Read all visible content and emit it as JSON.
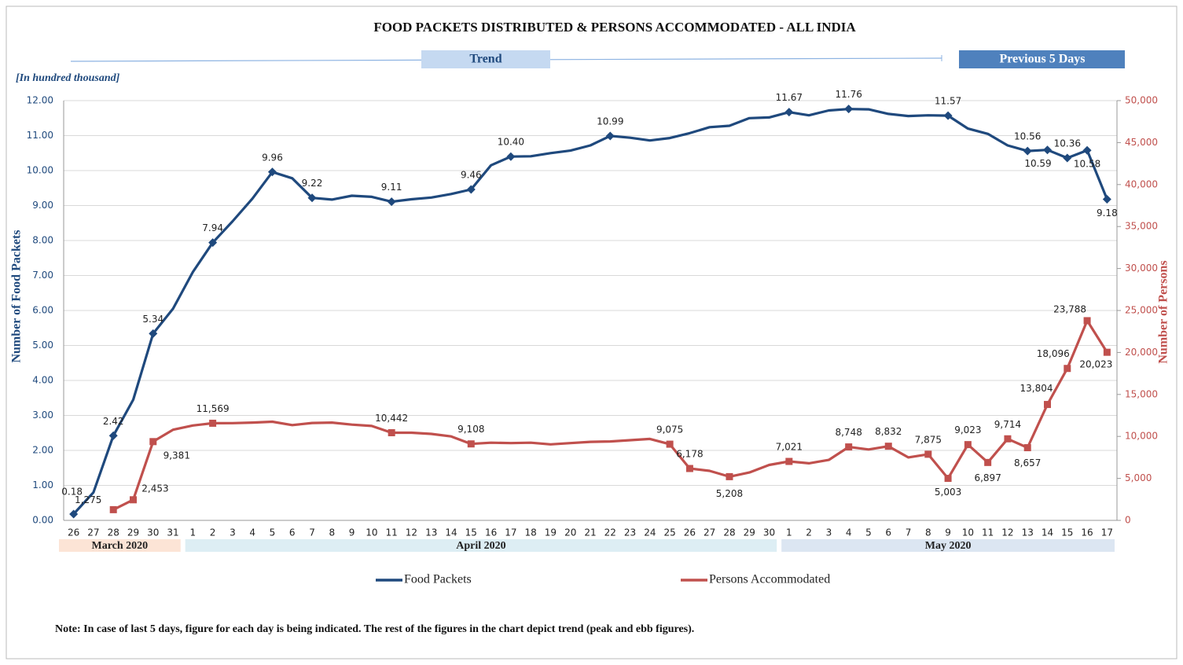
{
  "chart_data": {
    "type": "line",
    "title": "FOOD PACKETS DISTRIBUTED & PERSONS ACCOMMODATED - ALL INDIA",
    "trend_label": "Trend",
    "recent_label": "Previous 5 Days",
    "unit_note": "[In hundred thousand]",
    "ylabel": "Number of Food Packets",
    "y2label": "Number of Persons",
    "note": "Note: In case of last 5 days, figure for each day is being indicated. The rest of the figures in the chart depict trend (peak and ebb figures).",
    "months": [
      {
        "name": "March 2020",
        "days": [
          "26",
          "27",
          "28",
          "29",
          "30",
          "31"
        ]
      },
      {
        "name": "April 2020",
        "days": [
          "1",
          "2",
          "3",
          "4",
          "5",
          "6",
          "7",
          "8",
          "9",
          "10",
          "11",
          "12",
          "13",
          "14",
          "15",
          "16",
          "17",
          "18",
          "19",
          "20",
          "21",
          "22",
          "23",
          "24",
          "25",
          "26",
          "27",
          "28",
          "29",
          "30"
        ]
      },
      {
        "name": "May 2020",
        "days": [
          "1",
          "2",
          "3",
          "4",
          "5",
          "6",
          "7",
          "8",
          "9",
          "10",
          "11",
          "12",
          "13",
          "14",
          "15",
          "16",
          "17"
        ]
      }
    ],
    "ylim": [
      0,
      12
    ],
    "yticks": [
      {
        "value": 0,
        "label": "0.00"
      },
      {
        "value": 1,
        "label": "1.00"
      },
      {
        "value": 2,
        "label": "2.00"
      },
      {
        "value": 3,
        "label": "3.00"
      },
      {
        "value": 4,
        "label": "4.00"
      },
      {
        "value": 5,
        "label": "5.00"
      },
      {
        "value": 6,
        "label": "6.00"
      },
      {
        "value": 7,
        "label": "7.00"
      },
      {
        "value": 8,
        "label": "8.00"
      },
      {
        "value": 9,
        "label": "9.00"
      },
      {
        "value": 10,
        "label": "10.00"
      },
      {
        "value": 11,
        "label": "11.00"
      },
      {
        "value": 12,
        "label": "12.00"
      }
    ],
    "y2lim": [
      0,
      50000
    ],
    "y2ticks": [
      0,
      {
        "value": 5000,
        "label": "5,000"
      },
      {
        "value": 10000,
        "label": "10,000"
      },
      {
        "value": 15000,
        "label": "15,000"
      },
      {
        "value": 20000,
        "label": "20,000"
      },
      {
        "value": 25000,
        "label": "25,000"
      },
      {
        "value": 30000,
        "label": "30,000"
      },
      {
        "value": 35000,
        "label": "35,000"
      },
      {
        "value": 40000,
        "label": "40,000"
      },
      {
        "value": 45000,
        "label": "45,000"
      },
      {
        "value": 50000,
        "label": "50,000"
      }
    ],
    "grid": true,
    "series": [
      {
        "name": "Food Packets",
        "color": "#1f497d",
        "marker": "diamond",
        "values": [
          0.18,
          0.8,
          2.42,
          3.45,
          5.34,
          6.05,
          7.1,
          7.94,
          8.55,
          9.2,
          9.96,
          9.78,
          9.22,
          9.17,
          9.28,
          9.25,
          9.11,
          9.18,
          9.23,
          9.33,
          9.46,
          10.15,
          10.4,
          10.41,
          10.5,
          10.57,
          10.72,
          10.99,
          10.94,
          10.86,
          10.93,
          11.07,
          11.24,
          11.28,
          11.5,
          11.52,
          11.67,
          11.58,
          11.72,
          11.76,
          11.75,
          11.62,
          11.56,
          11.58,
          11.57,
          11.2,
          11.05,
          10.72,
          10.56,
          10.59,
          10.36,
          10.58,
          9.18
        ],
        "value_labels": [
          "0.18",
          null,
          "2.42",
          null,
          "5.34",
          null,
          null,
          "7.94",
          null,
          null,
          "9.96",
          null,
          "9.22",
          null,
          null,
          null,
          "9.11",
          null,
          null,
          null,
          "9.46",
          null,
          "10.40",
          null,
          null,
          null,
          null,
          "10.99",
          null,
          null,
          null,
          null,
          null,
          null,
          null,
          null,
          "11.67",
          null,
          null,
          "11.76",
          null,
          null,
          null,
          null,
          "11.57",
          null,
          null,
          null,
          "10.56",
          "10.59",
          "10.36",
          "10.58",
          "9.18"
        ]
      },
      {
        "name": "Persons Accommodated",
        "color": "#c0504d",
        "marker": "square",
        "axis": "y2",
        "values": [
          null,
          null,
          1275,
          2453,
          9381,
          10800,
          11300,
          11569,
          11580,
          11650,
          11750,
          11350,
          11600,
          11650,
          11400,
          11250,
          10442,
          10440,
          10300,
          10000,
          9108,
          9250,
          9200,
          9250,
          9050,
          9200,
          9350,
          9400,
          9550,
          9700,
          9075,
          6178,
          5900,
          5208,
          5700,
          6600,
          7021,
          6800,
          7200,
          8748,
          8450,
          8832,
          7500,
          7875,
          5003,
          9023,
          6897,
          9714,
          8657,
          13804,
          18096,
          23788,
          20023
        ],
        "value_labels": [
          null,
          null,
          "1,275",
          "2,453",
          "9,381",
          null,
          null,
          "11,569",
          null,
          null,
          null,
          null,
          null,
          null,
          null,
          null,
          "10,442",
          null,
          null,
          null,
          "9,108",
          null,
          null,
          null,
          null,
          null,
          null,
          null,
          null,
          null,
          "9,075",
          "6,178",
          null,
          "5,208",
          null,
          null,
          "7,021",
          null,
          null,
          "8,748",
          null,
          "8,832",
          null,
          "7,875",
          "5,003",
          "9,023",
          "6,897",
          "9,714",
          "8,657",
          "13,804",
          "18,096",
          "23,788",
          "20,023"
        ]
      }
    ]
  }
}
